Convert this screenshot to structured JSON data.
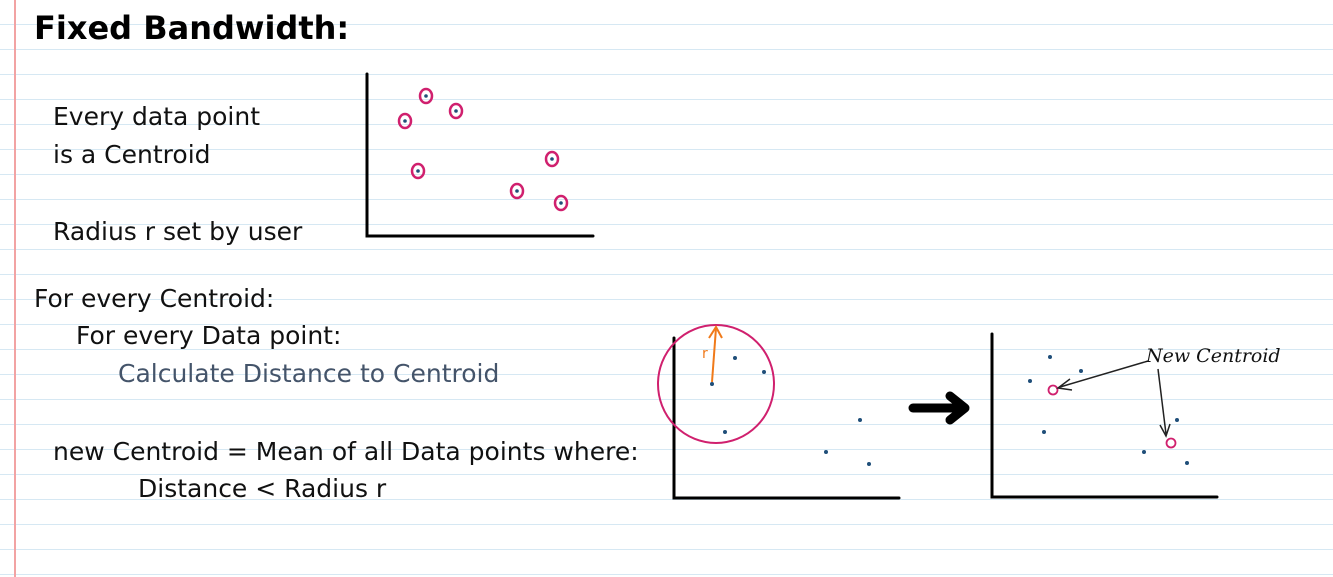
{
  "title": "Fixed Bandwidth:",
  "text": {
    "line1": "Every data point",
    "line2": "is a Centroid",
    "line3": "Radius r set by user",
    "line4": "For every Centroid:",
    "line5": "For every Data point:",
    "line6": "Calculate Distance to Centroid",
    "line7": "new Centroid = Mean of all Data points where:",
    "line8": "Distance < Radius r"
  },
  "sketches": {
    "radius_label": "r",
    "new_centroid_label": "New Centroid"
  },
  "colors": {
    "centroid_ring": "#d0206e",
    "data_point": "#1f4e79",
    "radius_arrow": "#f07a1a",
    "axes": "#000000",
    "note_lines": "#d6e8f3",
    "margin": "#f2a3a3"
  }
}
